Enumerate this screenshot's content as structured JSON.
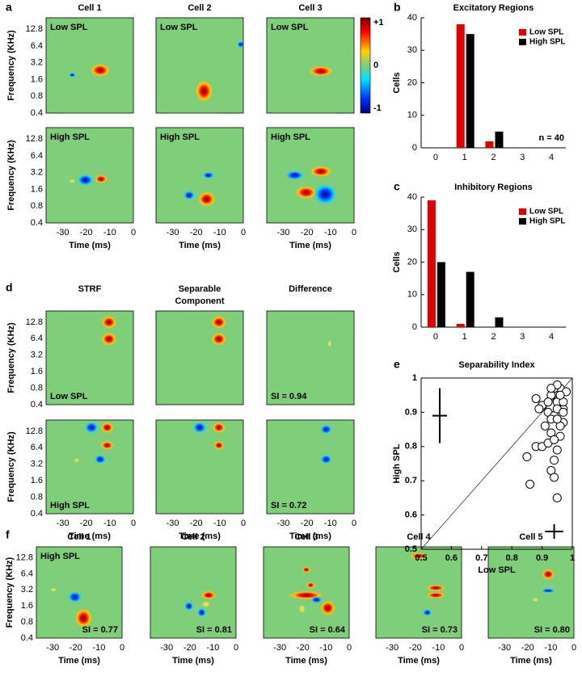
{
  "strf_axes": {
    "ylabel": "Frequency (KHz)",
    "xlabel": "Time (ms)",
    "freq_ticks": [
      "12.8",
      "6.4",
      "3.2",
      "1.6",
      "0.8",
      "0.4"
    ],
    "time_ticks": [
      "-30",
      "-20",
      "-10",
      "0"
    ]
  },
  "strf_panels": {
    "a": {
      "letter": "a",
      "columns": [
        "Cell 1",
        "Cell 2",
        "Cell 3"
      ],
      "conditions": [
        "Low SPL",
        "High SPL"
      ],
      "colorbar_ticks": [
        "+1",
        "0",
        "-1"
      ]
    },
    "d": {
      "letter": "d",
      "columns": [
        [
          "STRF"
        ],
        [
          "Separable",
          "Component"
        ],
        [
          "Difference"
        ]
      ],
      "conditions": [
        "Low SPL",
        "High SPL"
      ],
      "si": [
        "SI = 0.94",
        "SI = 0.72"
      ]
    },
    "f": {
      "letter": "f",
      "columns": [
        "Cell 1",
        "Cell 2",
        "Cell 3",
        "Cell 4",
        "Cell 5"
      ],
      "condition": "High SPL",
      "si": [
        "SI = 0.77",
        "SI = 0.81",
        "SI = 0.64",
        "SI = 0.73",
        "SI = 0.80"
      ]
    }
  },
  "chart_data": [
    {
      "type": "bar",
      "letter": "b",
      "title": "Excitatory Regions",
      "ylabel": "Cells",
      "categories": [
        "0",
        "1",
        "2",
        "3",
        "4"
      ],
      "series": [
        {
          "name": "Low SPL",
          "color": "#e00000",
          "values": [
            0,
            38,
            2,
            0,
            0
          ]
        },
        {
          "name": "High SPL",
          "color": "#000000",
          "values": [
            0,
            35,
            5,
            0,
            0
          ]
        }
      ],
      "ylim": [
        0,
        40
      ],
      "yticks": [
        0,
        10,
        20,
        30,
        40
      ],
      "legend": "upper right",
      "annotation": "n = 40"
    },
    {
      "type": "bar",
      "letter": "c",
      "title": "Inhibitory Regions",
      "ylabel": "Cells",
      "categories": [
        "0",
        "1",
        "2",
        "3",
        "4"
      ],
      "series": [
        {
          "name": "Low SPL",
          "color": "#e00000",
          "values": [
            39,
            1,
            0,
            0,
            0
          ]
        },
        {
          "name": "High SPL",
          "color": "#000000",
          "values": [
            20,
            17,
            3,
            0,
            0
          ]
        }
      ],
      "ylim": [
        0,
        40
      ],
      "yticks": [
        0,
        10,
        20,
        30,
        40
      ],
      "legend": "upper right"
    },
    {
      "type": "scatter",
      "letter": "e",
      "title": "Separability Index",
      "xlabel": "Low SPL",
      "ylabel": "High SPL",
      "x": [
        0.86,
        0.85,
        0.88,
        0.9,
        0.92,
        0.93,
        0.94,
        0.95,
        0.96,
        0.97,
        0.97,
        0.95,
        0.93,
        0.9,
        0.92,
        0.94,
        0.96,
        0.98,
        0.97,
        0.95,
        0.93,
        0.91,
        0.89,
        0.88,
        0.94,
        0.95,
        0.96,
        0.93,
        0.94,
        0.95,
        0.97,
        0.96,
        0.94,
        0.92,
        0.93,
        0.95
      ],
      "values": [
        0.69,
        0.77,
        0.8,
        0.8,
        0.81,
        0.73,
        0.71,
        0.65,
        0.83,
        0.87,
        0.91,
        0.93,
        0.95,
        0.92,
        0.9,
        0.89,
        0.97,
        0.96,
        0.93,
        0.91,
        0.88,
        0.86,
        0.91,
        0.94,
        0.97,
        0.98,
        0.95,
        0.84,
        0.82,
        0.79,
        0.9,
        0.86,
        0.76,
        0.93,
        0.97,
        0.88
      ],
      "color": "#ffffff",
      "xlim": [
        0.5,
        1
      ],
      "ylim": [
        0.5,
        1
      ],
      "xticks": [
        0.5,
        0.6,
        0.7,
        0.8,
        0.9,
        1
      ],
      "yticks": [
        0.5,
        0.6,
        0.7,
        0.8,
        0.9,
        1
      ],
      "identity_line": true,
      "x_summary": {
        "mean": 0.94,
        "sd": 0.03
      },
      "y_summary": {
        "mean": 0.89,
        "sd": 0.08
      }
    }
  ]
}
